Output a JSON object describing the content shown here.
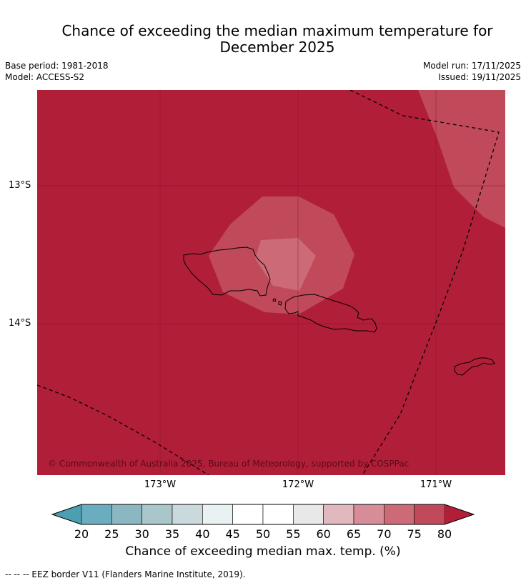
{
  "title_line1": "Chance of exceeding the median maximum temperature for",
  "title_line2": "December 2025",
  "meta": {
    "base_period": "Base period: 1981-2018",
    "model": "Model: ACCESS-S2",
    "model_run": "Model run: 17/11/2025",
    "issued": "Issued: 19/11/2025"
  },
  "map": {
    "lat_labels": [
      "13°S",
      "14°S"
    ],
    "lon_labels": [
      "173°W",
      "172°W",
      "171°W"
    ],
    "copyright": "© Commonwealth of Australia 2025, Bureau of Meteorology, supported by COSPPac",
    "colors": {
      "background": "#b11e38",
      "band_75_80": "#c04a59",
      "band_70_75": "#cc6a77"
    }
  },
  "colorbar": {
    "ticks": [
      "20",
      "25",
      "30",
      "35",
      "40",
      "45",
      "50",
      "55",
      "60",
      "65",
      "70",
      "75",
      "80"
    ],
    "colors": [
      "#6aadc0",
      "#8bb7c2",
      "#a9c7ca",
      "#c9d9dc",
      "#e9f1f2",
      "#ffffff",
      "#ffffff",
      "#e8e8e8",
      "#e1b8bd",
      "#d68d98",
      "#cc6a77",
      "#c04a59"
    ],
    "under_color": "#4a9fb1",
    "over_color": "#b11e38",
    "label": "Chance of exceeding median max. temp. (%)"
  },
  "footnote": "--  --  -- EEZ border V11 (Flanders Marine Institute, 2019)."
}
